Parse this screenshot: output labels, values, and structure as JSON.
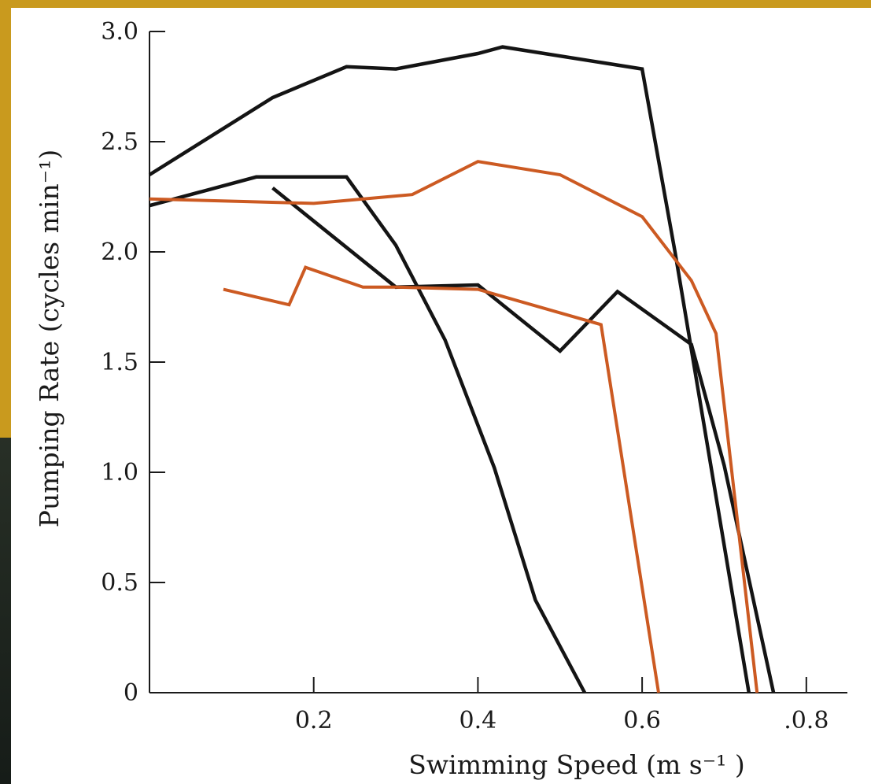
{
  "chart_data": {
    "type": "line",
    "title": "",
    "xlabel": "Swimming Speed (m s⁻¹ )",
    "ylabel": "Pumping Rate (cycles min⁻¹)",
    "xlim": [
      0.0,
      0.85
    ],
    "ylim": [
      0,
      3.0
    ],
    "xticks": [
      0.2,
      0.4,
      0.6,
      0.8
    ],
    "xtick_labels": [
      "0.2",
      "0.4",
      "0.6",
      ".0.8"
    ],
    "yticks": [
      0,
      0.5,
      1.0,
      1.5,
      2.0,
      2.5,
      3.0
    ],
    "ytick_labels": [
      "0",
      "0.5",
      "1.0",
      "1.5",
      "2.0",
      "2.5",
      "3.0"
    ],
    "grid": false,
    "colors": {
      "black": "#141414",
      "orange": "#cc5a22"
    },
    "series": [
      {
        "color": "black",
        "x": [
          0.0,
          0.15,
          0.24,
          0.3,
          0.4,
          0.43,
          0.6,
          0.64,
          0.73
        ],
        "y": [
          2.35,
          2.7,
          2.84,
          2.83,
          2.9,
          2.93,
          2.83,
          2.0,
          0
        ]
      },
      {
        "color": "black",
        "x": [
          0.0,
          0.13,
          0.24,
          0.3,
          0.36,
          0.42,
          0.47,
          0.53
        ],
        "y": [
          2.21,
          2.34,
          2.34,
          2.03,
          1.6,
          1.02,
          0.42,
          0
        ]
      },
      {
        "color": "black",
        "x": [
          0.15,
          0.3,
          0.4,
          0.5,
          0.57,
          0.66,
          0.7,
          0.76
        ],
        "y": [
          2.29,
          1.84,
          1.85,
          1.55,
          1.82,
          1.58,
          1.03,
          0
        ]
      },
      {
        "color": "orange",
        "x": [
          0.0,
          0.2,
          0.32,
          0.4,
          0.5,
          0.6,
          0.66,
          0.69,
          0.74
        ],
        "y": [
          2.24,
          2.22,
          2.26,
          2.41,
          2.35,
          2.16,
          1.87,
          1.63,
          0
        ]
      },
      {
        "color": "orange",
        "x": [
          0.09,
          0.17,
          0.19,
          0.26,
          0.3,
          0.4,
          0.55,
          0.62
        ],
        "y": [
          1.83,
          1.76,
          1.93,
          1.84,
          1.84,
          1.83,
          1.67,
          0
        ]
      }
    ]
  }
}
